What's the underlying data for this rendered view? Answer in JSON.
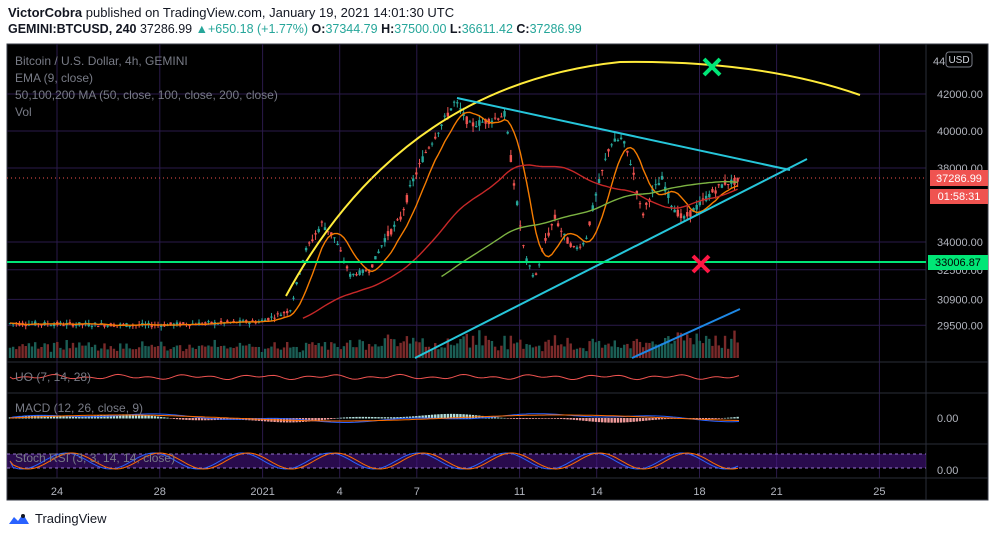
{
  "header": {
    "author": "VictorCobra",
    "published_text": "published on TradingView.com, January 19, 2021 14:01:30 UTC",
    "symbol": "GEMINI:BTCUSD, 240",
    "last": "37286.99",
    "change": "+650.18 (+1.77%)",
    "o_label": "O:",
    "o_val": "37344.79",
    "h_label": "H:",
    "h_val": "37500.00",
    "l_label": "L:",
    "l_val": "36611.42",
    "c_label": "C:",
    "c_val": "37286.99"
  },
  "legend": {
    "title": "Bitcoin / U.S. Dollar, 4h, GEMINI",
    "ema": "EMA (9, close)",
    "ma": "50,100,200 MA (50, close, 100, close, 200, close)",
    "vol": "Vol",
    "uo": "UO (7, 14, 28)",
    "macd": "MACD (12, 26, close, 9)",
    "stoch": "Stoch RSI (3, 3, 14, 14, close)"
  },
  "currency": "USD",
  "footer": {
    "brand": "TradingView"
  },
  "colors": {
    "bg": "#000000",
    "up": "#26a69a",
    "down": "#ef5350",
    "ema": "#f57c00",
    "ma50": "#c62828",
    "ma100": "#7cb342",
    "yellow": "#ffeb3b",
    "cyan": "#26c6da",
    "green": "#00e676",
    "blue": "#1e88e5",
    "purple": "#4a148c"
  },
  "chart_data": {
    "type": "candlestick",
    "price_ticks": [
      "42000.00",
      "40000.00",
      "38000.00",
      "34000.00",
      "32500.00",
      "30900.00",
      "29500.00"
    ],
    "price_tick_values": [
      42000,
      40000,
      38000,
      34000,
      32500,
      30900,
      29500
    ],
    "last_price_label": "37286.99",
    "countdown_label": "01:58:31",
    "support_label": "33006.87",
    "indicator_ticks": [
      "0.00",
      "0.00"
    ],
    "x_ticks": [
      "24",
      "28",
      "2021",
      "4",
      "7",
      "11",
      "14",
      "18",
      "21",
      "25"
    ],
    "x_tick_values": [
      24,
      28,
      32,
      35,
      38,
      42,
      45,
      49,
      52,
      56
    ],
    "partial_top_label": "44"
  }
}
